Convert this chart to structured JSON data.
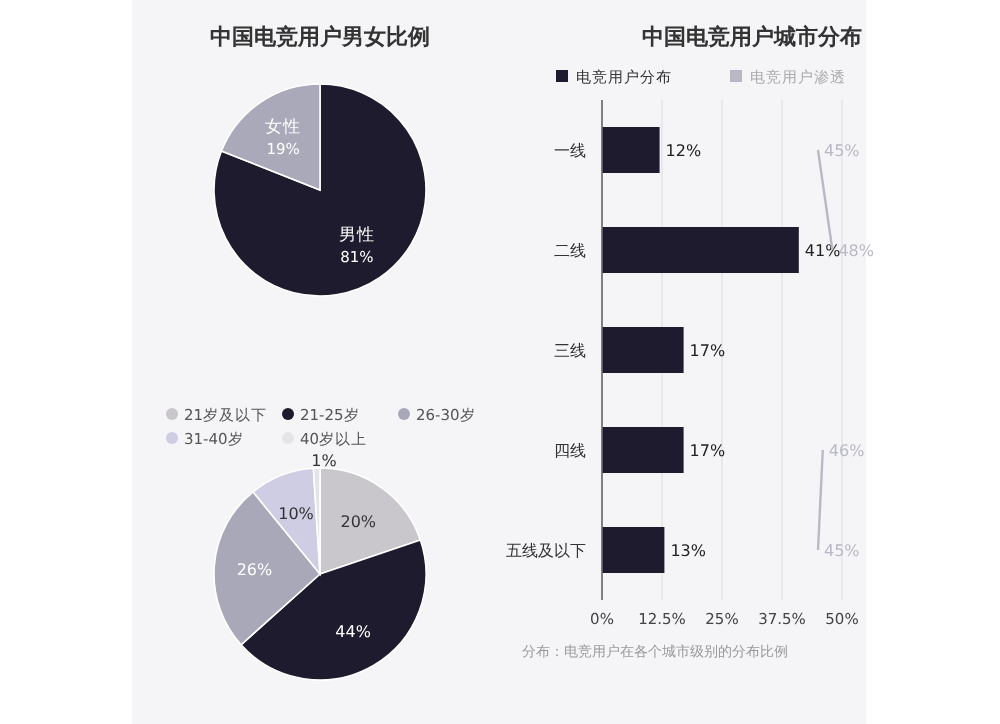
{
  "chart_data": [
    {
      "type": "pie",
      "title": "中国电竞用户男女比例",
      "categories": [
        "男性",
        "女性"
      ],
      "values": [
        81,
        19
      ],
      "colors": [
        "#1d1b2d",
        "#aaa9b9"
      ],
      "value_labels": [
        "81%",
        "19%"
      ],
      "legend": false
    },
    {
      "type": "bar",
      "orientation": "horizontal",
      "title": "中国电竞用户城市分布",
      "categories": [
        "一线",
        "二线",
        "三线",
        "四线",
        "五线及以下"
      ],
      "xlim": [
        0,
        50
      ],
      "xticks": [
        {
          "value": 0,
          "label": "0%"
        },
        {
          "value": 12.5,
          "label": "12.5%"
        },
        {
          "value": 25,
          "label": "25%"
        },
        {
          "value": 37.5,
          "label": "37.5%"
        },
        {
          "value": 50,
          "label": "50%"
        }
      ],
      "grid": "x",
      "legend": "top left",
      "series": [
        {
          "name": "电竞用户分布",
          "color": "#1d1b2d",
          "values": [
            12,
            41,
            17,
            17,
            13
          ],
          "value_labels": [
            "12%",
            "41%",
            "17%",
            "17%",
            "13%"
          ]
        },
        {
          "name": "电竞用户渗透",
          "type": "line",
          "color": "#b9b9c6",
          "values": [
            45,
            48,
            null,
            46,
            45
          ],
          "value_labels": [
            "45%",
            "48%",
            null,
            "46%",
            "45%"
          ]
        }
      ],
      "annotations": [
        "分布：电竞用户在各个城市级别的分布比例"
      ]
    },
    {
      "type": "pie",
      "categories": [
        "21岁及以下",
        "21-25岁",
        "26-30岁",
        "31-40岁",
        "40岁以上"
      ],
      "values": [
        20,
        44,
        26,
        10,
        1
      ],
      "colors": [
        "#c9c7cc",
        "#1d1b2d",
        "#a9a8b9",
        "#cfcde3",
        "#e4e4e8"
      ],
      "value_labels": [
        "20%",
        "44%",
        "26%",
        "10%",
        "1%"
      ],
      "legend": "top"
    }
  ]
}
